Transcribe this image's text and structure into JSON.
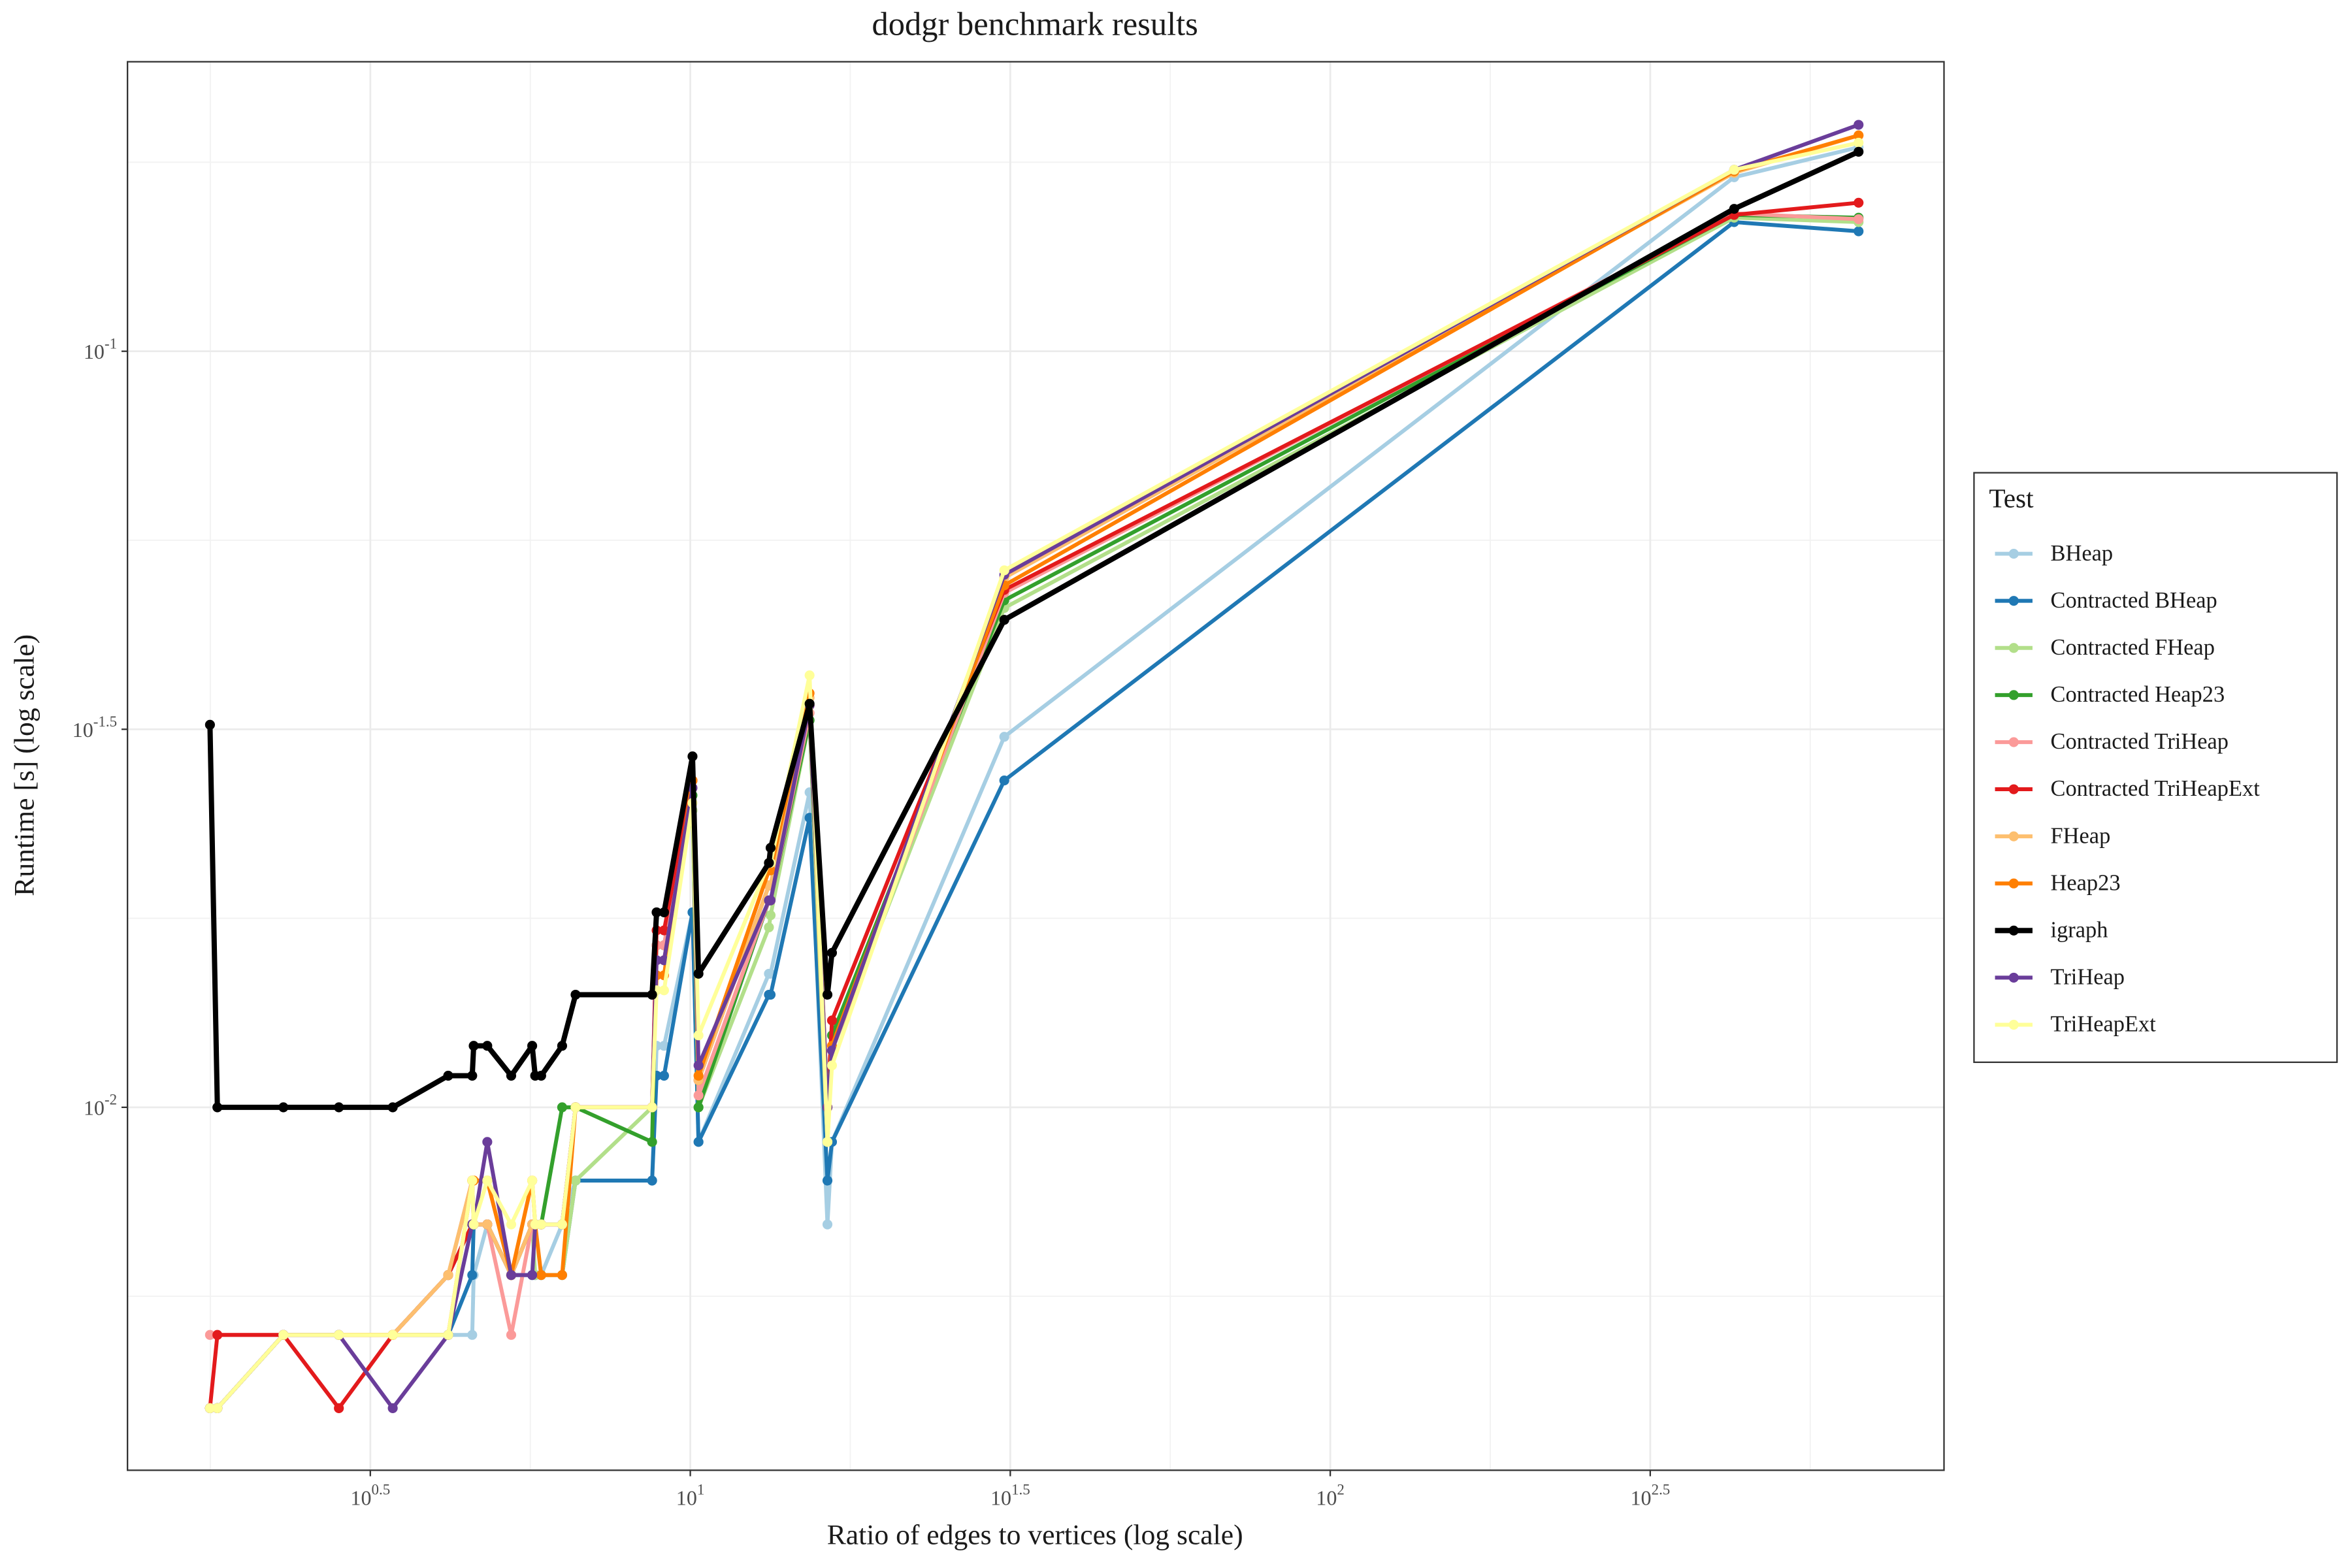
{
  "chart_data": {
    "type": "line",
    "title": "dodgr benchmark results",
    "x_label": "Ratio of edges to vertices (log scale)",
    "y_label": "Runtime [s] (log scale)",
    "legend_title": "Test",
    "xlog": true,
    "ylog": true,
    "grid": true,
    "legend_position": "right",
    "xlim": [
      1.32,
      910
    ],
    "ylim": [
      0.003311,
      0.2415
    ],
    "xticks": [
      {
        "value": 3.1623,
        "label": "10^0.5"
      },
      {
        "value": 10,
        "label": "10^1"
      },
      {
        "value": 31.623,
        "label": "10^1.5"
      },
      {
        "value": 100,
        "label": "10^2"
      },
      {
        "value": 316.23,
        "label": "10^2.5"
      }
    ],
    "yticks": [
      {
        "value": 0.01,
        "label": "10^-2"
      },
      {
        "value": 0.031623,
        "label": "10^-1.5"
      },
      {
        "value": 0.1,
        "label": "10^-1"
      }
    ],
    "x": [
      1.776,
      1.824,
      2.313,
      2.824,
      3.428,
      4.185,
      4.563,
      4.587,
      4.817,
      5.25,
      5.662,
      5.723,
      5.848,
      6.306,
      6.618,
      8.716,
      8.858,
      9.099,
      10.08,
      10.3,
      13.27,
      13.35,
      15.36,
      16.38,
      16.65,
      30.95,
      427.7,
      669.2
    ],
    "series": [
      {
        "name": "BHeap",
        "color": "#a6cee3",
        "values": [
          0.004,
          0.004,
          0.005,
          0.005,
          0.005,
          0.005,
          0.005,
          0.006,
          0.007,
          0.006,
          0.006,
          0.006,
          0.006,
          0.007,
          0.008,
          0.008,
          0.01206,
          0.01206,
          0.01811,
          0.009,
          0.01502,
          0.01502,
          0.0261,
          0.007,
          0.009,
          0.03091,
          0.1699,
          0.1861
        ]
      },
      {
        "name": "Contracted BHeap",
        "color": "#1f78b4",
        "values": [
          0.004,
          0.004,
          0.005,
          0.005,
          0.005,
          0.005,
          0.006,
          0.007,
          0.007,
          0.006,
          0.006,
          0.006,
          0.006,
          0.006,
          0.008,
          0.008,
          0.01101,
          0.01101,
          0.01811,
          0.009,
          0.01409,
          0.01409,
          0.02415,
          0.008,
          0.009,
          0.02706,
          0.1482,
          0.1441
        ]
      },
      {
        "name": "Contracted FHeap",
        "color": "#b2df8a",
        "values": [
          0.004,
          0.004,
          0.005,
          0.005,
          0.005,
          0.006,
          0.008,
          0.007,
          0.007,
          0.006,
          0.007,
          0.006,
          0.006,
          0.006,
          0.008,
          0.01,
          0.01638,
          0.01638,
          0.02471,
          0.01,
          0.0173,
          0.01795,
          0.0325,
          0.009,
          0.01189,
          0.04576,
          0.1502,
          0.1482
        ]
      },
      {
        "name": "Contracted Heap23",
        "color": "#33a02c",
        "values": [
          0.004,
          0.004,
          0.005,
          0.005,
          0.005,
          0.006,
          0.007,
          0.007,
          0.007,
          0.006,
          0.007,
          0.007,
          0.007,
          0.01,
          0.01,
          0.009,
          0.01638,
          0.01638,
          0.02586,
          0.01,
          0.01878,
          0.01878,
          0.0325,
          0.01,
          0.01245,
          0.04683,
          0.1515,
          0.1502
        ]
      },
      {
        "name": "Contracted TriHeap",
        "color": "#fb9a99",
        "values": [
          0.005,
          0.005,
          0.005,
          0.005,
          0.005,
          0.006,
          0.008,
          0.007,
          0.007,
          0.005,
          0.007,
          0.007,
          0.007,
          0.007,
          0.01,
          0.01,
          0.01638,
          0.01638,
          0.02706,
          0.01037,
          0.01878,
          0.01878,
          0.03323,
          0.01,
          0.01189,
          0.04791,
          0.1522,
          0.1495
        ]
      },
      {
        "name": "Contracted TriHeapExt",
        "color": "#e31a1c",
        "values": [
          0.004,
          0.005,
          0.005,
          0.004,
          0.005,
          0.006,
          0.007,
          0.007,
          0.007,
          0.006,
          0.007,
          0.007,
          0.007,
          0.007,
          0.01,
          0.01,
          0.01714,
          0.01714,
          0.02706,
          0.01086,
          0.01966,
          0.01966,
          0.03401,
          0.01,
          0.01303,
          0.04835,
          0.1515,
          0.1572
        ]
      },
      {
        "name": "FHeap",
        "color": "#fdbf6f",
        "values": [
          0.004,
          0.004,
          0.005,
          0.005,
          0.005,
          0.006,
          0.008,
          0.007,
          0.007,
          0.006,
          0.007,
          0.007,
          0.007,
          0.007,
          0.01,
          0.01,
          0.01565,
          0.01565,
          0.02645,
          0.01086,
          0.01966,
          0.01966,
          0.03481,
          0.009,
          0.01189,
          0.05016,
          0.1722,
          0.193
        ]
      },
      {
        "name": "Heap23",
        "color": "#ff7f00",
        "values": [
          0.004,
          0.004,
          0.005,
          0.005,
          0.005,
          0.005,
          0.008,
          0.008,
          0.008,
          0.006,
          0.008,
          0.007,
          0.006,
          0.006,
          0.01,
          0.01,
          0.01495,
          0.01495,
          0.02706,
          0.01101,
          0.02058,
          0.02058,
          0.03529,
          0.01,
          0.01206,
          0.04902,
          0.173,
          0.193
        ]
      },
      {
        "name": "igraph",
        "color": "#000000",
        "values": [
          0.03206,
          0.01,
          0.01,
          0.01,
          0.01,
          0.01101,
          0.01101,
          0.01206,
          0.01206,
          0.01101,
          0.01206,
          0.01101,
          0.01101,
          0.01206,
          0.01409,
          0.01409,
          0.01811,
          0.01811,
          0.02912,
          0.01502,
          0.02105,
          0.02204,
          0.03418,
          0.01409,
          0.01601,
          0.04413,
          0.1543,
          0.1836
        ]
      },
      {
        "name": "TriHeap",
        "color": "#6a3d9a",
        "values": [
          0.004,
          0.004,
          0.005,
          0.005,
          0.004,
          0.005,
          0.007,
          0.007,
          0.009,
          0.006,
          0.006,
          0.007,
          0.007,
          0.007,
          0.01,
          0.01,
          0.01565,
          0.01565,
          0.02645,
          0.01136,
          0.01878,
          0.01878,
          0.03401,
          0.01,
          0.01189,
          0.05062,
          0.1738,
          0.1993
        ]
      },
      {
        "name": "TriHeapExt",
        "color": "#ffff99",
        "values": [
          0.004,
          0.004,
          0.005,
          0.005,
          0.005,
          0.005,
          0.008,
          0.007,
          0.008,
          0.007,
          0.008,
          0.007,
          0.007,
          0.007,
          0.01,
          0.01,
          0.01428,
          0.01428,
          0.02527,
          0.01245,
          0.02105,
          0.02105,
          0.03727,
          0.009,
          0.01136,
          0.05132,
          0.1738,
          0.1887
        ]
      }
    ]
  }
}
